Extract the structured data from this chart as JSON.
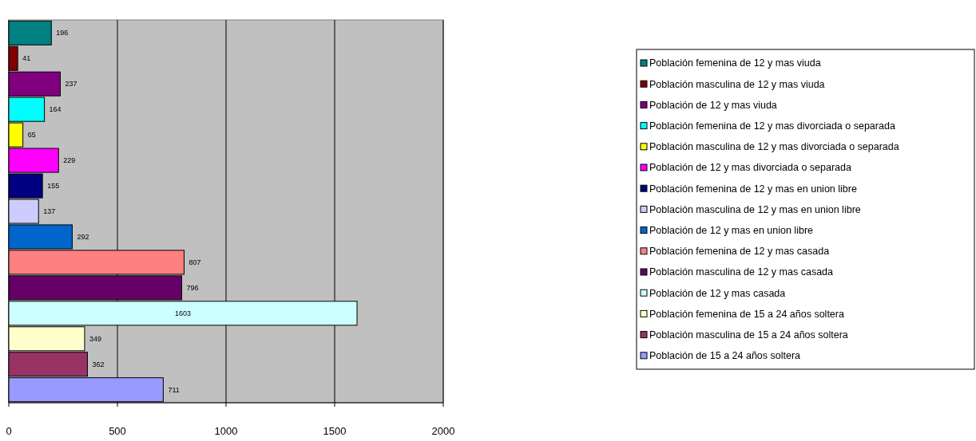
{
  "chart_data": {
    "type": "bar",
    "orientation": "horizontal",
    "categories": [
      null
    ],
    "xlim": [
      0,
      2000
    ],
    "xticks": [
      0,
      500,
      1000,
      1500,
      2000
    ],
    "grid": "x",
    "legend": "right",
    "data_labels": true,
    "series": [
      {
        "name": "Población femenina de 12 y mas viuda",
        "color": "#008080",
        "values": [
          196
        ]
      },
      {
        "name": "Población masculina de 12 y mas viuda",
        "color": "#800000",
        "values": [
          41
        ]
      },
      {
        "name": "Población de 12 y mas viuda",
        "color": "#800080",
        "values": [
          237
        ]
      },
      {
        "name": "Población femenina de 12 y mas divorciada o separada",
        "color": "#00ffff",
        "values": [
          164
        ]
      },
      {
        "name": "Población masculina de 12 y mas divorciada o separada",
        "color": "#ffff00",
        "values": [
          65
        ]
      },
      {
        "name": "Población de 12 y mas divorciada o separada",
        "color": "#ff00ff",
        "values": [
          229
        ]
      },
      {
        "name": "Población femenina de 12 y mas en union libre",
        "color": "#000080",
        "values": [
          155
        ]
      },
      {
        "name": "Población masculina de 12 y mas en union libre",
        "color": "#ccccff",
        "values": [
          137
        ]
      },
      {
        "name": "Población de 12 y mas en union libre",
        "color": "#0066cc",
        "values": [
          292
        ]
      },
      {
        "name": "Población femenina de 12 y mas casada",
        "color": "#ff8080",
        "values": [
          807
        ]
      },
      {
        "name": "Población masculina de 12 y mas casada",
        "color": "#660066",
        "values": [
          796
        ]
      },
      {
        "name": "Población de 12 y mas casada",
        "color": "#ccffff",
        "values": [
          1603
        ]
      },
      {
        "name": "Población femenina de 15 a 24 años soltera",
        "color": "#ffffcc",
        "values": [
          349
        ]
      },
      {
        "name": "Población masculina de 15 a 24 años soltera",
        "color": "#993366",
        "values": [
          362
        ]
      },
      {
        "name": "Población de 15 a 24 años soltera",
        "color": "#9999ff",
        "values": [
          711
        ]
      }
    ]
  }
}
